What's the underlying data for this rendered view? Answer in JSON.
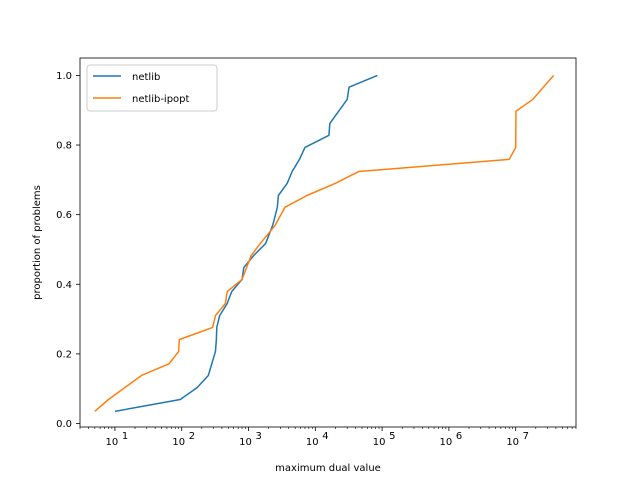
{
  "chart_data": {
    "type": "line",
    "title": "",
    "xlabel": "maximum dual value",
    "ylabel": "proportion of problems",
    "xscale": "log",
    "xlim": [
      3.0,
      80000000
    ],
    "ylim": [
      -0.01,
      1.05
    ],
    "grid": false,
    "legend_position": "top-left",
    "x_ticks": [
      {
        "value": 10,
        "label": "10",
        "exp": "1"
      },
      {
        "value": 100,
        "label": "10",
        "exp": "2"
      },
      {
        "value": 1000,
        "label": "10",
        "exp": "3"
      },
      {
        "value": 10000,
        "label": "10",
        "exp": "4"
      },
      {
        "value": 100000,
        "label": "10",
        "exp": "5"
      },
      {
        "value": 1000000,
        "label": "10",
        "exp": "6"
      },
      {
        "value": 10000000,
        "label": "10",
        "exp": "7"
      }
    ],
    "y_ticks": [
      {
        "value": 0.0,
        "label": "0.0"
      },
      {
        "value": 0.2,
        "label": "0.2"
      },
      {
        "value": 0.4,
        "label": "0.4"
      },
      {
        "value": 0.6,
        "label": "0.6"
      },
      {
        "value": 0.8,
        "label": "0.8"
      },
      {
        "value": 1.0,
        "label": "1.0"
      }
    ],
    "series": [
      {
        "name": "netlib",
        "color": "#1f77b4",
        "points": [
          [
            10,
            0.035
          ],
          [
            95,
            0.069
          ],
          [
            170,
            0.103
          ],
          [
            250,
            0.138
          ],
          [
            320,
            0.207
          ],
          [
            330,
            0.241
          ],
          [
            335,
            0.276
          ],
          [
            370,
            0.31
          ],
          [
            480,
            0.345
          ],
          [
            560,
            0.379
          ],
          [
            800,
            0.414
          ],
          [
            850,
            0.448
          ],
          [
            1200,
            0.483
          ],
          [
            1800,
            0.517
          ],
          [
            2300,
            0.569
          ],
          [
            2700,
            0.621
          ],
          [
            2800,
            0.655
          ],
          [
            3800,
            0.69
          ],
          [
            4500,
            0.724
          ],
          [
            5800,
            0.759
          ],
          [
            7000,
            0.793
          ],
          [
            16000,
            0.828
          ],
          [
            16500,
            0.862
          ],
          [
            30000,
            0.931
          ],
          [
            32000,
            0.966
          ],
          [
            85000,
            1.0
          ]
        ]
      },
      {
        "name": "netlib-ipopt",
        "color": "#ff7f0e",
        "points": [
          [
            5,
            0.035
          ],
          [
            8,
            0.069
          ],
          [
            25,
            0.138
          ],
          [
            65,
            0.172
          ],
          [
            90,
            0.207
          ],
          [
            92,
            0.241
          ],
          [
            290,
            0.276
          ],
          [
            320,
            0.31
          ],
          [
            450,
            0.345
          ],
          [
            480,
            0.379
          ],
          [
            800,
            0.414
          ],
          [
            1100,
            0.483
          ],
          [
            1500,
            0.517
          ],
          [
            2500,
            0.569
          ],
          [
            3500,
            0.621
          ],
          [
            7500,
            0.655
          ],
          [
            20000,
            0.69
          ],
          [
            45000,
            0.724
          ],
          [
            8000000,
            0.759
          ],
          [
            10000000,
            0.793
          ],
          [
            10100000,
            0.897
          ],
          [
            18000000,
            0.931
          ],
          [
            37000000,
            1.0
          ]
        ]
      }
    ]
  }
}
